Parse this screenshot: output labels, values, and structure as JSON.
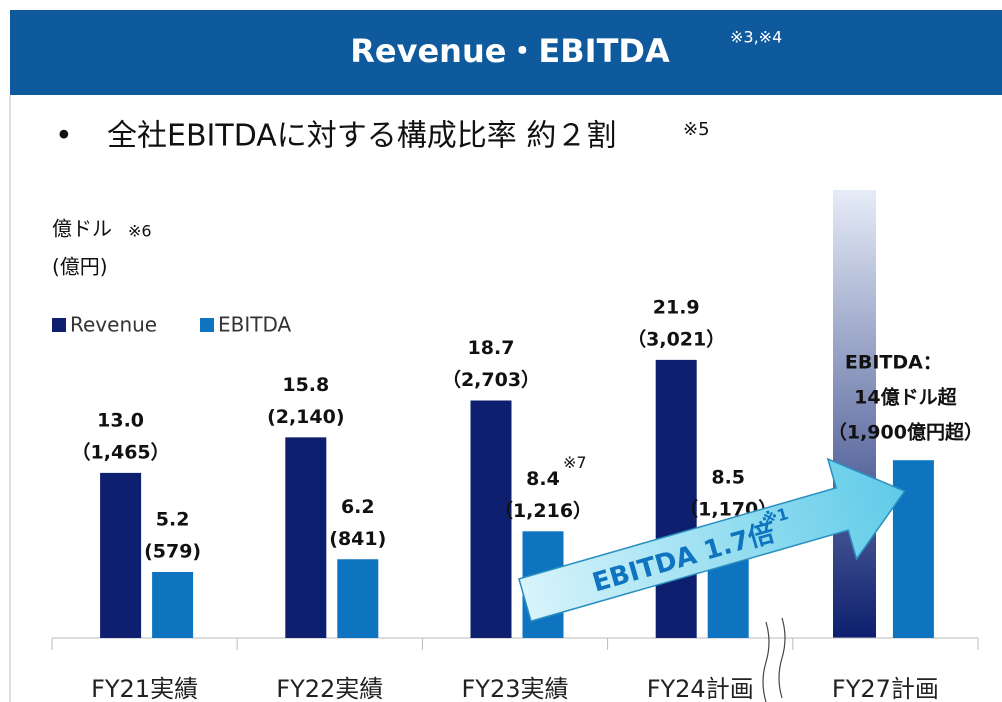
{
  "header": {
    "title": "Revenue・EBITDA",
    "note": "※3,※4"
  },
  "bullet": {
    "text": "全社EBITDAに対する構成比率 約２割",
    "note": "※5"
  },
  "chart_data": {
    "type": "bar",
    "unit_label": "億ドル",
    "unit_note": "※6",
    "unit_label_2": "(億円)",
    "categories": [
      "FY21実績",
      "FY22実績",
      "FY23実績",
      "FY24計画",
      "FY27計画"
    ],
    "series": [
      {
        "name": "Revenue",
        "color": "#0d1f6e",
        "values": [
          13.0,
          15.8,
          18.7,
          21.9,
          null
        ],
        "value_labels": [
          "13.0",
          "15.8",
          "18.7",
          "21.9",
          null
        ],
        "yen_labels": [
          "（1,465）",
          "(2,140)",
          "（2,703）",
          "（3,021）",
          null
        ]
      },
      {
        "name": "EBITDA",
        "color": "#0e74bf",
        "values": [
          5.2,
          6.2,
          8.4,
          8.5,
          14
        ],
        "value_labels": [
          "5.2",
          "6.2",
          "8.4",
          "8.5",
          null
        ],
        "yen_labels": [
          "(579)",
          "(841)",
          "（1,216）",
          "（1,170）",
          null
        ]
      }
    ],
    "ylim": [
      0,
      25
    ],
    "yticks": [],
    "legend": "top-left",
    "annotations": {
      "fy23_note": "※7",
      "fy27_line1": "EBITDA：",
      "fy27_line2": "14億ドル超",
      "fy27_line3": "（1,900億円超）",
      "arrow_text": "EBITDA 1.7倍",
      "arrow_note": "※1"
    }
  }
}
